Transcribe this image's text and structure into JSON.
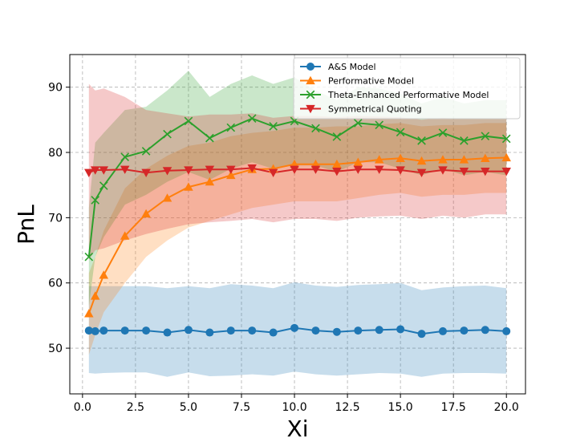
{
  "chart_data": {
    "type": "line",
    "title": "",
    "xlabel": "Xi",
    "ylabel": "PnL",
    "xlim": [
      -0.6,
      20.9
    ],
    "ylim": [
      43,
      95
    ],
    "xticks": [
      0.0,
      2.5,
      5.0,
      7.5,
      10.0,
      12.5,
      15.0,
      17.5,
      20.0
    ],
    "xtick_labels": [
      "0.0",
      "2.5",
      "5.0",
      "7.5",
      "10.0",
      "12.5",
      "15.0",
      "17.5",
      "20.0"
    ],
    "yticks": [
      50,
      60,
      70,
      80,
      90
    ],
    "ytick_labels": [
      "50",
      "60",
      "70",
      "80",
      "90"
    ],
    "grid": true,
    "legend_position": "upper-right",
    "x": [
      0.3,
      0.6,
      1,
      2,
      3,
      4,
      5,
      6,
      7,
      8,
      9,
      10,
      11,
      12,
      13,
      14,
      15,
      16,
      17,
      18,
      19,
      20
    ],
    "series": [
      {
        "name": "A&S Model",
        "color": "#1f77b4",
        "marker": "circle",
        "values": [
          52.7,
          52.6,
          52.7,
          52.7,
          52.7,
          52.4,
          52.8,
          52.4,
          52.7,
          52.7,
          52.4,
          53.1,
          52.7,
          52.5,
          52.7,
          52.8,
          52.9,
          52.2,
          52.6,
          52.7,
          52.8,
          52.6
        ],
        "band_upper": [
          59.5,
          59.5,
          59.5,
          59.5,
          59.5,
          59.2,
          59.5,
          59.2,
          59.8,
          59.6,
          59.2,
          60.1,
          59.6,
          59.4,
          59.7,
          59.8,
          60.0,
          58.9,
          59.3,
          59.5,
          59.6,
          59.2
        ],
        "band_lower": [
          46.2,
          46.1,
          46.2,
          46.3,
          46.3,
          45.6,
          46.3,
          45.7,
          45.8,
          46.0,
          45.8,
          46.4,
          46.0,
          45.8,
          46.0,
          46.2,
          46.1,
          45.6,
          46.1,
          46.2,
          46.2,
          46.1
        ]
      },
      {
        "name": "Performative Model",
        "color": "#ff7f0e",
        "marker": "triangle-up",
        "values": [
          55.3,
          58.0,
          61.2,
          67.2,
          70.6,
          73.0,
          74.7,
          75.5,
          76.5,
          77.4,
          77.5,
          78.2,
          78.2,
          78.2,
          78.5,
          78.9,
          79.1,
          78.7,
          78.9,
          78.9,
          79.1,
          79.2
        ],
        "band_upper": [
          61.5,
          64.0,
          68.0,
          74.5,
          77.5,
          79.5,
          81.0,
          81.5,
          82.5,
          83.0,
          83.3,
          83.8,
          83.8,
          84.0,
          84.0,
          84.3,
          84.5,
          84.0,
          84.2,
          84.2,
          84.5,
          84.5
        ],
        "band_lower": [
          49.0,
          52.0,
          55.5,
          60.0,
          64.0,
          66.5,
          68.5,
          69.5,
          70.5,
          71.5,
          72.0,
          72.5,
          72.5,
          72.5,
          73.0,
          73.5,
          73.8,
          73.2,
          73.5,
          73.5,
          73.8,
          73.8
        ]
      },
      {
        "name": "Theta-Enhanced Performative Model",
        "color": "#2ca02c",
        "marker": "x",
        "values": [
          64.0,
          72.7,
          74.9,
          79.3,
          80.2,
          82.8,
          84.8,
          82.2,
          83.8,
          85.2,
          84.0,
          84.8,
          83.7,
          82.4,
          84.5,
          84.2,
          83.1,
          81.8,
          83.0,
          81.8,
          82.5,
          82.1
        ],
        "band_upper": [
          71.5,
          81.5,
          83.0,
          86.5,
          87.0,
          89.5,
          92.5,
          88.5,
          90.5,
          91.8,
          90.5,
          91.5,
          89.5,
          88.0,
          90.0,
          89.8,
          89.0,
          87.5,
          88.5,
          87.5,
          88.0,
          88.0
        ],
        "band_lower": [
          56.5,
          64.0,
          67.0,
          72.0,
          73.5,
          75.5,
          77.0,
          75.8,
          77.5,
          78.5,
          77.5,
          78.0,
          78.0,
          77.0,
          78.5,
          78.5,
          77.5,
          76.5,
          77.5,
          76.5,
          77.0,
          76.5
        ]
      },
      {
        "name": "Symmetrical Quoting",
        "color": "#d62728",
        "marker": "triangle-down",
        "values": [
          76.9,
          77.3,
          77.3,
          77.4,
          76.9,
          77.2,
          77.3,
          77.4,
          77.4,
          77.6,
          76.9,
          77.4,
          77.4,
          77.1,
          77.4,
          77.4,
          77.3,
          76.9,
          77.3,
          77.1,
          77.1,
          77.1
        ],
        "band_upper": [
          90.5,
          89.5,
          89.8,
          88.5,
          86.5,
          86.0,
          85.5,
          85.8,
          85.8,
          86.0,
          85.3,
          85.6,
          85.6,
          85.4,
          85.6,
          85.5,
          85.4,
          85.0,
          85.3,
          85.1,
          85.1,
          85.1
        ],
        "band_lower": [
          63.5,
          65.0,
          65.3,
          66.5,
          67.5,
          68.3,
          69.0,
          69.3,
          69.5,
          69.8,
          69.3,
          69.8,
          69.8,
          69.5,
          70.0,
          70.2,
          70.3,
          69.8,
          70.3,
          70.0,
          70.5,
          70.5
        ]
      }
    ]
  }
}
